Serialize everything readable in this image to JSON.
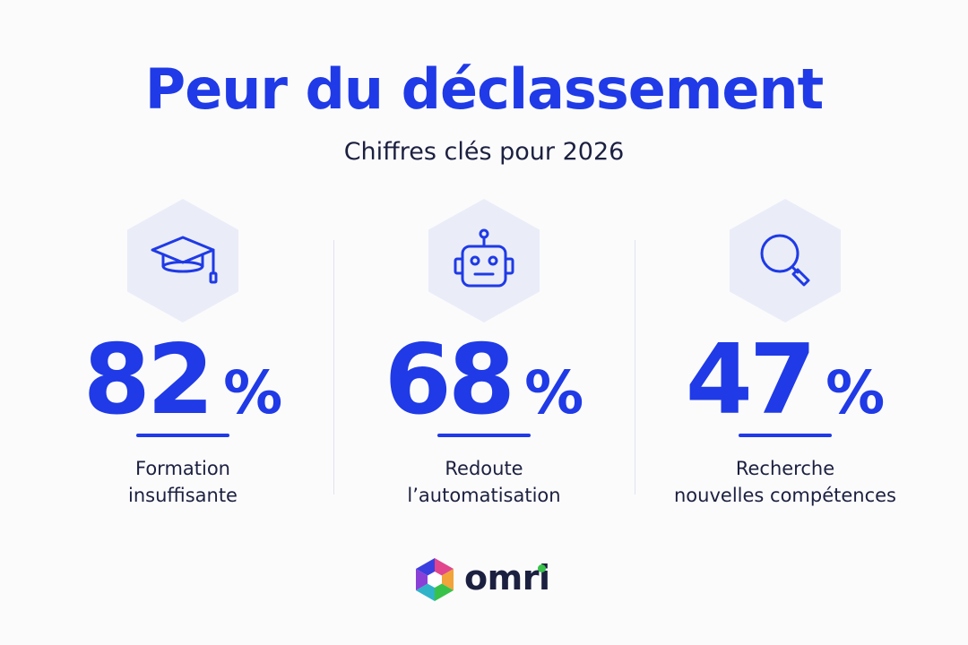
{
  "title": "Peur du déclassement",
  "subtitle": "Chiffres clés pour 2026",
  "accent_color": "#1f3ae6",
  "stats": [
    {
      "icon": "graduation-cap-icon",
      "value": "82",
      "unit": "%",
      "label_line1": "Formation",
      "label_line2": "insuffisante"
    },
    {
      "icon": "robot-icon",
      "value": "68",
      "unit": "%",
      "label_line1": "Redoute",
      "label_line2": "l’automatisation"
    },
    {
      "icon": "magnifier-icon",
      "value": "47",
      "unit": "%",
      "label_line1": "Recherche",
      "label_line2": "nouvelles compétences"
    }
  ],
  "brand": {
    "name": "omri",
    "logo_icon": "omri-hexagon-logo-icon"
  }
}
